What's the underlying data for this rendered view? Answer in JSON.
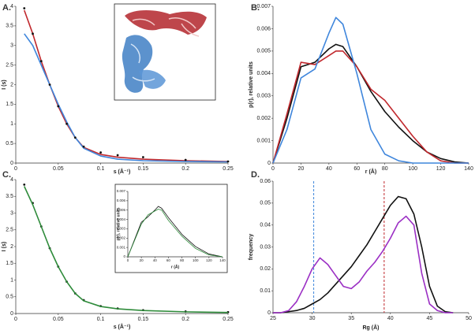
{
  "chart_data": [
    {
      "type": "line",
      "label": "A.",
      "x_label": "s (Å⁻¹)",
      "y_label": "I (s)",
      "xlim": [
        0,
        0.25
      ],
      "xticks": [
        0,
        0.05,
        0.1,
        0.15,
        0.2,
        0.25
      ],
      "ylim": [
        0,
        4
      ],
      "yticks": [
        0,
        0.5,
        1,
        1.5,
        2,
        2.5,
        3,
        3.5,
        4
      ],
      "x": [
        0.01,
        0.02,
        0.03,
        0.04,
        0.05,
        0.06,
        0.07,
        0.08,
        0.1,
        0.12,
        0.15,
        0.2,
        0.25
      ],
      "series": [
        {
          "color": "#c0282d",
          "style": "line",
          "values": [
            3.9,
            3.3,
            2.6,
            2.0,
            1.45,
            1.0,
            0.65,
            0.4,
            0.22,
            0.15,
            0.1,
            0.06,
            0.04
          ]
        },
        {
          "color": "#3f86dc",
          "style": "line",
          "values": [
            3.3,
            3.0,
            2.5,
            2.0,
            1.5,
            1.05,
            0.65,
            0.38,
            0.18,
            0.1,
            0.06,
            0.04,
            0.03
          ]
        },
        {
          "color": "#111111",
          "style": "points",
          "values": [
            3.95,
            3.3,
            2.6,
            2.0,
            1.45,
            1.0,
            0.65,
            0.42,
            0.27,
            0.2,
            0.15,
            0.08,
            0.04
          ]
        }
      ]
    },
    {
      "type": "line",
      "label": "B.",
      "x_label": "r (Å)",
      "y_label": "p(r), relative units",
      "xlim": [
        0,
        140
      ],
      "xticks": [
        0,
        20,
        40,
        60,
        80,
        100,
        120,
        140
      ],
      "ylim": [
        0,
        0.007
      ],
      "yticks": [
        0,
        0.001,
        0.002,
        0.003,
        0.004,
        0.005,
        0.006,
        0.007
      ],
      "x": [
        0,
        10,
        20,
        30,
        40,
        45,
        50,
        60,
        70,
        80,
        90,
        100,
        110,
        120,
        130,
        140
      ],
      "series": [
        {
          "color": "#111111",
          "style": "line",
          "values": [
            0,
            0.002,
            0.0043,
            0.0045,
            0.0051,
            0.0053,
            0.0052,
            0.0043,
            0.0032,
            0.0023,
            0.0016,
            0.001,
            0.0005,
            0.0002,
            5e-05,
            0
          ]
        },
        {
          "color": "#c0282d",
          "style": "line",
          "values": [
            0,
            0.0022,
            0.0045,
            0.0044,
            0.0048,
            0.005,
            0.005,
            0.0043,
            0.0033,
            0.0028,
            0.002,
            0.0012,
            0.0005,
            0.0001,
            0,
            0
          ]
        },
        {
          "color": "#3f86dc",
          "style": "line",
          "values": [
            0,
            0.0015,
            0.0038,
            0.0042,
            0.0058,
            0.0065,
            0.0062,
            0.004,
            0.0015,
            0.0004,
            0.0001,
            0,
            0,
            0,
            0,
            0
          ]
        }
      ]
    },
    {
      "type": "line",
      "label": "C.",
      "x_label": "s (Å⁻¹)",
      "y_label": "I (s)",
      "xlim": [
        0,
        0.25
      ],
      "xticks": [
        0,
        0.05,
        0.1,
        0.15,
        0.2,
        0.25
      ],
      "ylim": [
        0,
        4
      ],
      "yticks": [
        0,
        0.5,
        1,
        1.5,
        2,
        2.5,
        3,
        3.5,
        4
      ],
      "x": [
        0.01,
        0.02,
        0.03,
        0.04,
        0.05,
        0.06,
        0.07,
        0.08,
        0.1,
        0.12,
        0.15,
        0.2,
        0.25
      ],
      "series": [
        {
          "color": "#111111",
          "style": "points",
          "values": [
            3.85,
            3.3,
            2.6,
            1.95,
            1.4,
            0.95,
            0.6,
            0.4,
            0.22,
            0.15,
            0.1,
            0.06,
            0.04
          ]
        },
        {
          "color": "#2e8b3a",
          "style": "line",
          "values": [
            3.8,
            3.25,
            2.6,
            1.95,
            1.4,
            0.95,
            0.6,
            0.38,
            0.21,
            0.14,
            0.09,
            0.05,
            0.03
          ]
        }
      ]
    },
    {
      "type": "line",
      "x_label": "r (Å)",
      "y_label": "p(r), relative units",
      "xlim": [
        0,
        140
      ],
      "xticks": [
        0,
        20,
        40,
        60,
        80,
        100,
        120,
        140
      ],
      "ylim": [
        0,
        0.007
      ],
      "yticks": [
        0,
        0.001,
        0.002,
        0.003,
        0.004,
        0.005,
        0.006,
        0.007
      ],
      "x": [
        0,
        20,
        30,
        40,
        45,
        50,
        60,
        80,
        100,
        120,
        140
      ],
      "series": [
        {
          "color": "#111111",
          "style": "line",
          "values": [
            0,
            0.0037,
            0.0043,
            0.005,
            0.0054,
            0.0052,
            0.0042,
            0.0024,
            0.0011,
            0.0003,
            0
          ]
        },
        {
          "color": "#2e8b3a",
          "style": "line",
          "values": [
            0,
            0.0035,
            0.0045,
            0.0049,
            0.0051,
            0.005,
            0.0039,
            0.0022,
            0.0009,
            0.0002,
            0
          ]
        }
      ]
    },
    {
      "type": "line",
      "label": "D.",
      "x_label": "Rg (Å)",
      "y_label": "frequency",
      "xlim": [
        25,
        50
      ],
      "xticks": [
        25,
        30,
        35,
        40,
        45,
        50
      ],
      "ylim": [
        0,
        0.06
      ],
      "yticks": [
        0,
        0.01,
        0.02,
        0.03,
        0.04,
        0.05,
        0.06
      ],
      "x": [
        25,
        26,
        27,
        28,
        29,
        30,
        31,
        32,
        33,
        34,
        35,
        36,
        37,
        38,
        39,
        40,
        41,
        42,
        43,
        44,
        45,
        46,
        47,
        48
      ],
      "series": [
        {
          "color": "#111111",
          "style": "line",
          "values": [
            0,
            0,
            0.0005,
            0.001,
            0.002,
            0.004,
            0.006,
            0.009,
            0.013,
            0.017,
            0.021,
            0.026,
            0.031,
            0.037,
            0.043,
            0.049,
            0.053,
            0.052,
            0.045,
            0.03,
            0.012,
            0.003,
            0.0005,
            0
          ]
        },
        {
          "color": "#9b2fc4",
          "style": "line",
          "values": [
            0,
            0,
            0.001,
            0.005,
            0.012,
            0.02,
            0.025,
            0.022,
            0.017,
            0.012,
            0.011,
            0.014,
            0.019,
            0.023,
            0.028,
            0.034,
            0.041,
            0.044,
            0.04,
            0.018,
            0.004,
            0.001,
            0,
            0
          ]
        }
      ],
      "vlines": [
        {
          "x": 30.2,
          "color": "#3f86dc"
        },
        {
          "x": 39.2,
          "color": "#c0282d"
        }
      ]
    }
  ]
}
